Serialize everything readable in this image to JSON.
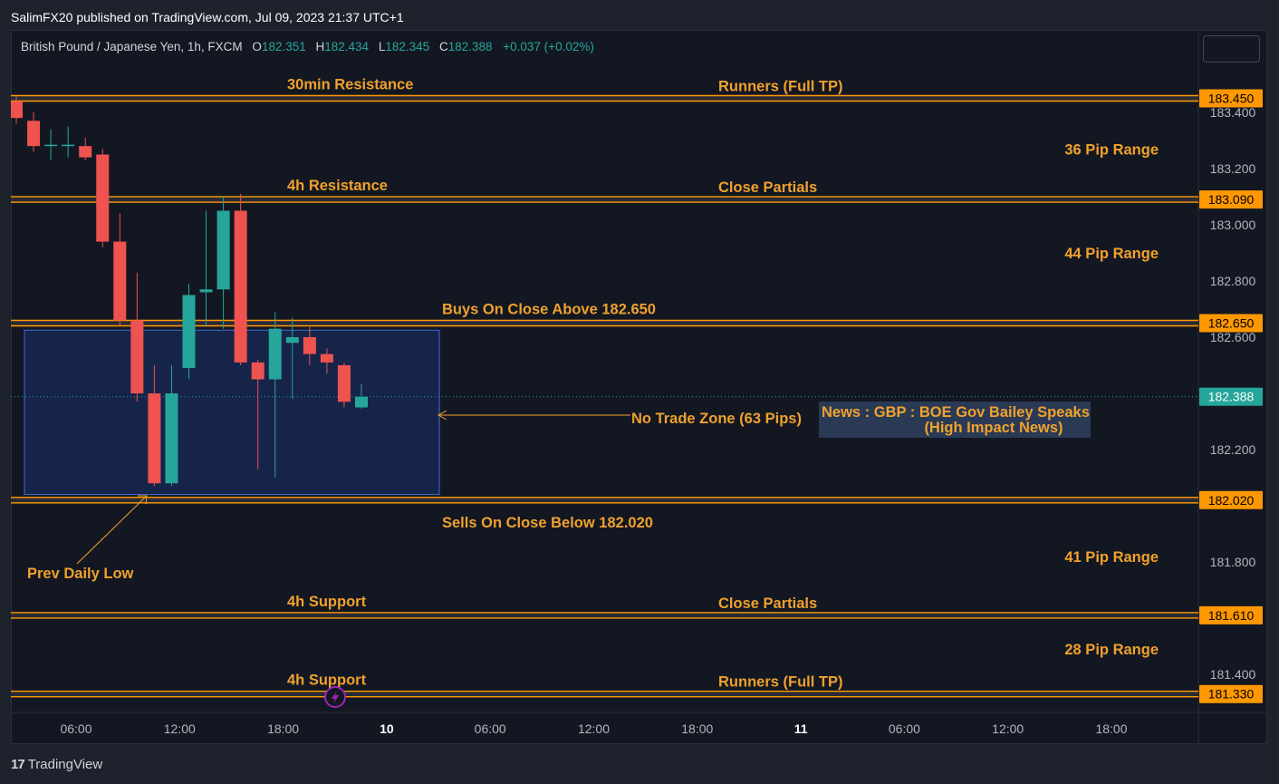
{
  "header": {
    "published": "SalimFX20 published on TradingView.com, Jul 09, 2023 21:37 UTC+1"
  },
  "legend": {
    "symbol": "British Pound / Japanese Yen, 1h, FXCM",
    "open_label": "O",
    "open": "182.351",
    "high_label": "H",
    "high": "182.434",
    "low_label": "L",
    "low": "182.345",
    "close_label": "C",
    "close": "182.388",
    "change": "+0.037 (+0.02%)"
  },
  "footer": {
    "logo": "17",
    "brand": "TradingView"
  },
  "colors": {
    "background": "#131722",
    "up": "#26a69a",
    "down": "#ef5350",
    "level_line": "#ff9800",
    "annotation": "#f0a12c",
    "zone_border": "#2962ff",
    "price_tag_bg": "#ff9800",
    "last_price_bg": "#26a69a",
    "news_icon": "#9c27b0"
  },
  "chart_data": {
    "type": "candlestick",
    "ylim": [
      181.28,
      183.5
    ],
    "y_ticks": [
      183.4,
      183.2,
      183.0,
      182.8,
      182.6,
      182.2,
      181.8,
      181.4
    ],
    "y_tick_labels": [
      "183.400",
      "183.200",
      "183.000",
      "182.800",
      "182.600",
      "182.200",
      "181.800",
      "181.400"
    ],
    "x_ticks": [
      {
        "label": "06:00",
        "bold": false
      },
      {
        "label": "12:00",
        "bold": false
      },
      {
        "label": "18:00",
        "bold": false
      },
      {
        "label": "10",
        "bold": true
      },
      {
        "label": "06:00",
        "bold": false
      },
      {
        "label": "12:00",
        "bold": false
      },
      {
        "label": "18:00",
        "bold": false
      },
      {
        "label": "11",
        "bold": true
      },
      {
        "label": "06:00",
        "bold": false
      },
      {
        "label": "12:00",
        "bold": false
      },
      {
        "label": "18:00",
        "bold": false
      }
    ],
    "candles": [
      {
        "o": 183.44,
        "h": 183.46,
        "l": 183.36,
        "c": 183.38
      },
      {
        "o": 183.37,
        "h": 183.4,
        "l": 183.26,
        "c": 183.28
      },
      {
        "o": 183.28,
        "h": 183.34,
        "l": 183.23,
        "c": 183.285
      },
      {
        "o": 183.28,
        "h": 183.35,
        "l": 183.24,
        "c": 183.285
      },
      {
        "o": 183.28,
        "h": 183.31,
        "l": 183.23,
        "c": 183.24
      },
      {
        "o": 183.25,
        "h": 183.27,
        "l": 182.92,
        "c": 182.94
      },
      {
        "o": 182.94,
        "h": 183.04,
        "l": 182.64,
        "c": 182.66
      },
      {
        "o": 182.66,
        "h": 182.83,
        "l": 182.37,
        "c": 182.4
      },
      {
        "o": 182.4,
        "h": 182.5,
        "l": 182.07,
        "c": 182.08
      },
      {
        "o": 182.08,
        "h": 182.5,
        "l": 182.07,
        "c": 182.4
      },
      {
        "o": 182.49,
        "h": 182.79,
        "l": 182.45,
        "c": 182.75
      },
      {
        "o": 182.76,
        "h": 183.05,
        "l": 182.64,
        "c": 182.77
      },
      {
        "o": 182.77,
        "h": 183.1,
        "l": 182.63,
        "c": 183.05
      },
      {
        "o": 183.05,
        "h": 183.11,
        "l": 182.5,
        "c": 182.51
      },
      {
        "o": 182.51,
        "h": 182.52,
        "l": 182.13,
        "c": 182.45
      },
      {
        "o": 182.45,
        "h": 182.69,
        "l": 182.1,
        "c": 182.63
      },
      {
        "o": 182.58,
        "h": 182.67,
        "l": 182.38,
        "c": 182.6
      },
      {
        "o": 182.6,
        "h": 182.64,
        "l": 182.5,
        "c": 182.54
      },
      {
        "o": 182.54,
        "h": 182.56,
        "l": 182.47,
        "c": 182.51
      },
      {
        "o": 182.5,
        "h": 182.51,
        "l": 182.35,
        "c": 182.37
      },
      {
        "o": 182.35,
        "h": 182.434,
        "l": 182.345,
        "c": 182.388
      }
    ],
    "levels": [
      {
        "price": 183.45,
        "tag": "183.450",
        "left_label": "30min Resistance",
        "right_label": "Runners (Full TP)"
      },
      {
        "price": 183.09,
        "tag": "183.090",
        "left_label": "4h Resistance",
        "right_label": "Close Partials"
      },
      {
        "price": 182.65,
        "tag": "182.650",
        "left_label": "",
        "right_label": "",
        "mid_label": "Buys On Close Above 182.650"
      },
      {
        "price": 182.02,
        "tag": "182.020",
        "left_label": "",
        "right_label": "",
        "mid_label_below": "Sells On Close Below 182.020"
      },
      {
        "price": 181.61,
        "tag": "181.610",
        "left_label": "4h Support",
        "right_label": "Close Partials"
      },
      {
        "price": 181.33,
        "tag": "181.330",
        "left_label": "4h Support",
        "right_label": "Runners (Full TP)"
      }
    ],
    "ranges": [
      {
        "label": "36 Pip Range",
        "price": 183.27
      },
      {
        "label": "44 Pip Range",
        "price": 182.9
      },
      {
        "label": "41 Pip Range",
        "price": 181.82
      },
      {
        "label": "28 Pip Range",
        "price": 181.49
      }
    ],
    "last_price": {
      "value": 182.388,
      "tag": "182.388"
    },
    "no_trade_zone": {
      "top": 182.625,
      "bottom": 182.04,
      "label": "No Trade Zone (63 Pips)"
    },
    "prev_daily_low": {
      "label": "Prev Daily Low",
      "price": 182.04
    },
    "news": {
      "line1": "News : GBP : BOE Gov Bailey Speaks",
      "line2": "(High Impact News)"
    }
  }
}
